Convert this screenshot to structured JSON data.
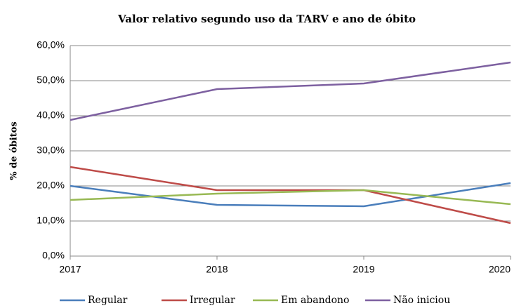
{
  "chart_data": {
    "type": "line",
    "title": "Valor relativo segundo uso da TARV e ano de óbito",
    "y_label": "% de óbitos",
    "x": [
      2017,
      2018,
      2019,
      2020
    ],
    "xlim": [
      2017,
      2020
    ],
    "xticks": [
      2017,
      2018,
      2019,
      2020
    ],
    "ylim": [
      0,
      60
    ],
    "yticks": [
      {
        "value": 0,
        "label": "0,0%"
      },
      {
        "value": 10,
        "label": "10,0%"
      },
      {
        "value": 20,
        "label": "20,0%"
      },
      {
        "value": 30,
        "label": "30,0%"
      },
      {
        "value": 40,
        "label": "40,0%"
      },
      {
        "value": 50,
        "label": "50,0%"
      },
      {
        "value": 60,
        "label": "60,0%"
      }
    ],
    "grid": true,
    "legend": "bottom",
    "series": [
      {
        "name": "Regular",
        "color": "#4a7ebb",
        "values": [
          20.0,
          14.6,
          14.2,
          20.8
        ]
      },
      {
        "name": "Irregular",
        "color": "#be4b48",
        "values": [
          25.4,
          18.8,
          18.8,
          9.4
        ]
      },
      {
        "name": "Em abandono",
        "color": "#98b954",
        "values": [
          16.0,
          17.8,
          18.8,
          14.8
        ]
      },
      {
        "name": "Não iniciou",
        "color": "#7d60a0",
        "values": [
          38.8,
          47.6,
          49.2,
          55.2
        ]
      }
    ]
  }
}
